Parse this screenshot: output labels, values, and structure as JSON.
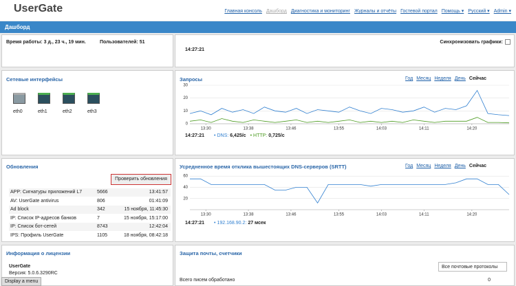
{
  "header": {
    "logo": "UserGate",
    "nav": [
      "Главная консоль",
      "Дашборд",
      "Диагностика и мониторинг",
      "Журналы и отчёты",
      "Гостевой портал",
      "Помощь ▾",
      "Русский ▾",
      "Admin ▾"
    ]
  },
  "titlebar": "Дашборд",
  "status": {
    "uptime": "Время работы: 3 д., 23 ч., 19 мин.",
    "users": "Пользователей: 51",
    "time": "14:27:21",
    "sync": "Синхронизовать графики:"
  },
  "interfaces": {
    "title": "Сетевые интерфейсы",
    "items": [
      "eth0",
      "eth1",
      "eth2",
      "eth3"
    ]
  },
  "requests": {
    "title": "Запросы",
    "periods": [
      "Год",
      "Месяц",
      "Неделя",
      "День",
      "Сейчас"
    ],
    "legend": {
      "time": "14:27:21",
      "items": [
        {
          "label": "DNS:",
          "value": "6,425/с"
        },
        {
          "label": "HTTP:",
          "value": "0,725/с"
        }
      ]
    },
    "chart": {
      "type": "line",
      "xlim": [
        0,
        60
      ],
      "ylim": [
        0,
        30
      ],
      "yticks": [
        0,
        10,
        20,
        30
      ],
      "xticks": [
        {
          "value": 3,
          "label": "13:30"
        },
        {
          "value": 11,
          "label": "13:38"
        },
        {
          "value": 19,
          "label": "13:46"
        },
        {
          "value": 28,
          "label": "13:55"
        },
        {
          "value": 36,
          "label": "14:03"
        },
        {
          "value": 44,
          "label": "14:11"
        },
        {
          "value": 53,
          "label": "14:20"
        }
      ],
      "x": [
        0,
        2,
        4,
        6,
        8,
        10,
        12,
        14,
        16,
        18,
        20,
        22,
        24,
        26,
        28,
        30,
        32,
        34,
        36,
        38,
        40,
        42,
        44,
        46,
        48,
        50,
        52,
        54,
        56,
        58,
        60
      ],
      "series": [
        {
          "name": "DNS",
          "color": "#2f7fd0",
          "values": [
            8,
            10,
            7,
            12,
            9,
            11,
            8,
            13,
            10,
            9,
            12,
            8,
            11,
            10,
            9,
            13,
            10,
            8,
            12,
            11,
            9,
            10,
            13,
            9,
            12,
            11,
            14,
            26,
            8,
            7,
            6.4
          ]
        },
        {
          "name": "HTTP",
          "color": "#4a9a1e",
          "values": [
            2,
            3,
            1,
            4,
            2,
            1,
            3,
            2,
            1,
            2,
            3,
            1,
            2,
            1,
            2,
            3,
            1,
            2,
            1,
            2,
            1,
            3,
            2,
            1,
            2,
            2,
            2,
            5,
            1,
            1,
            0.7
          ]
        }
      ]
    }
  },
  "updates": {
    "title": "Обновления",
    "button": "Проверить обновления",
    "rows": [
      [
        "APP: Сигнатуры приложений L7",
        "5666",
        "13:41:57"
      ],
      [
        "AV: UserGate antivirus",
        "806",
        "01:41:09"
      ],
      [
        "Ad block",
        "342",
        "15 ноября, 11:45:30"
      ],
      [
        "IP: Список IP-адресов банков",
        "7",
        "15 ноября, 15:17:00"
      ],
      [
        "IP: Список бот-сетей",
        "8743",
        "12:42:04"
      ],
      [
        "IPS: Профиль UserGate",
        "1105",
        "18 ноября, 08:42:18"
      ]
    ]
  },
  "srtt": {
    "title": "Усредненное время отклика вышестоящих DNS-серверов (SRTT)",
    "periods": [
      "Год",
      "Месяц",
      "Неделя",
      "День",
      "Сейчас"
    ],
    "legend": {
      "time": "14:27:21",
      "items": [
        {
          "label": "192.168.90.2:",
          "value": "27 мсек"
        }
      ]
    },
    "chart": {
      "type": "line",
      "xlim": [
        0,
        60
      ],
      "ylim": [
        0,
        70
      ],
      "yticks": [
        20,
        40,
        60
      ],
      "xticks": [
        {
          "value": 3,
          "label": "13:30"
        },
        {
          "value": 11,
          "label": "13:38"
        },
        {
          "value": 19,
          "label": "13:46"
        },
        {
          "value": 28,
          "label": "13:55"
        },
        {
          "value": 36,
          "label": "14:03"
        },
        {
          "value": 44,
          "label": "14:11"
        },
        {
          "value": 53,
          "label": "14:20"
        }
      ],
      "x": [
        0,
        2,
        4,
        6,
        8,
        10,
        12,
        14,
        16,
        18,
        20,
        22,
        24,
        26,
        28,
        30,
        32,
        34,
        36,
        38,
        40,
        42,
        44,
        46,
        48,
        50,
        52,
        54,
        56,
        58,
        60
      ],
      "series": [
        {
          "name": "192.168.90.2",
          "color": "#2f7fd0",
          "values": [
            55,
            55,
            45,
            45,
            45,
            45,
            45,
            45,
            35,
            35,
            40,
            40,
            12,
            45,
            45,
            45,
            45,
            42,
            45,
            45,
            45,
            45,
            45,
            45,
            45,
            48,
            55,
            55,
            45,
            45,
            27
          ]
        }
      ]
    }
  },
  "license": {
    "title": "Информация о лицензии",
    "product": "UserGate",
    "version": "Версия: 5.0.6.3290RC",
    "menu": "Display a menu"
  },
  "mail": {
    "title": "Защита почты, счетчики",
    "select": "Все почтовые протоколы",
    "row_label": "Всего писем обработано",
    "row_value": "0"
  }
}
